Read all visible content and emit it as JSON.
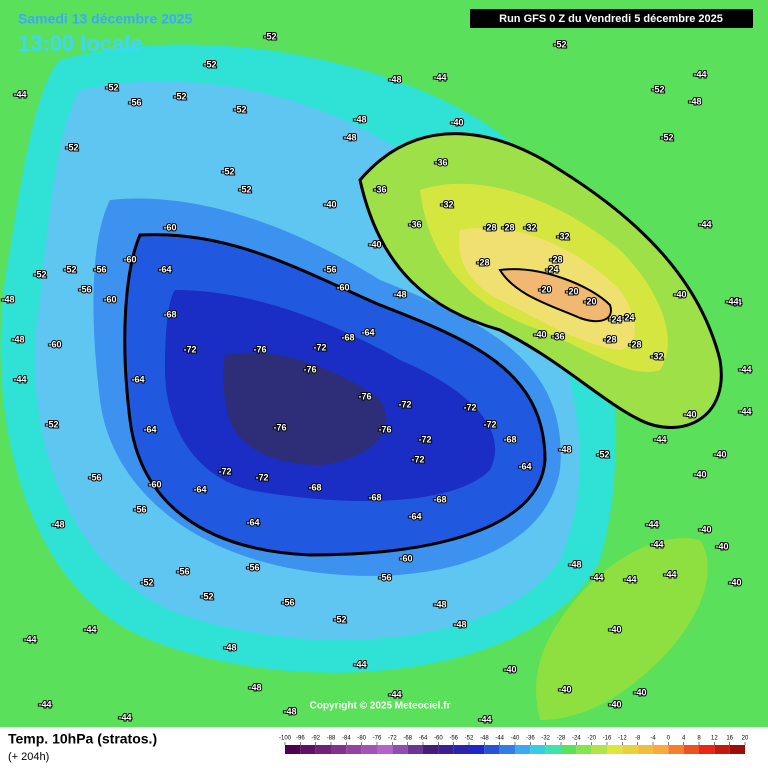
{
  "header": {
    "valid": "Samedi 13 décembre 2025",
    "local_time": "13:00 locale",
    "run": "Run GFS 0 Z du Vendredi 5 décembre 2025"
  },
  "footer": {
    "title": "Temp. 10hPa (stratos.)",
    "lead": "(+ 204h)",
    "copyright": "Copyright © 2025 Meteociel.fr"
  },
  "scale": {
    "ticks": [
      -100,
      -96,
      -92,
      -88,
      -84,
      -80,
      -76,
      -72,
      -68,
      -64,
      -60,
      -56,
      -52,
      -48,
      -44,
      -40,
      -36,
      -32,
      -28,
      -24,
      -20,
      -16,
      -12,
      -8,
      -4,
      0,
      4,
      8,
      12,
      16,
      20
    ]
  },
  "contour_labels": [
    -44,
    -52,
    -52,
    -56,
    -52,
    -52,
    -52,
    -52,
    -52,
    -52,
    -52,
    -52,
    -56,
    -60,
    -56,
    -60,
    -60,
    -64,
    -68,
    -72,
    -76,
    -72,
    -76,
    -68,
    -64,
    -76,
    -72,
    -72,
    -72,
    -76,
    -76,
    -72,
    -72,
    -68,
    -68,
    -68,
    -72,
    -72,
    -64,
    -64,
    -60,
    -64,
    -64,
    -60,
    -52,
    -56,
    -56,
    -56,
    -52,
    -52,
    -56,
    -56,
    -56,
    -60,
    -64,
    -64,
    -68,
    -52,
    -48,
    -60,
    -56,
    -48,
    -40,
    -36,
    -32,
    -28,
    -28,
    -32,
    -32,
    -28,
    -28,
    -20,
    -20,
    -20,
    -24,
    -24,
    -24,
    -28,
    -28,
    -32,
    -40,
    -40,
    -40,
    -36,
    -44,
    -48,
    -48,
    -48,
    -40,
    -40,
    -36,
    -36,
    -52,
    -52,
    -48,
    -52,
    -44,
    -44,
    -44,
    -44,
    -40,
    -40,
    -44,
    -44,
    -44,
    -40,
    -40,
    -44,
    -40,
    -48,
    -44,
    -44,
    -40,
    -40,
    -40,
    -40,
    -44,
    -48,
    -48,
    -44,
    -44,
    -52,
    -48,
    -48,
    -48,
    -44,
    -44,
    -44,
    -44,
    -48,
    -44,
    -48,
    -48,
    -44,
    -44,
    -40
  ]
}
